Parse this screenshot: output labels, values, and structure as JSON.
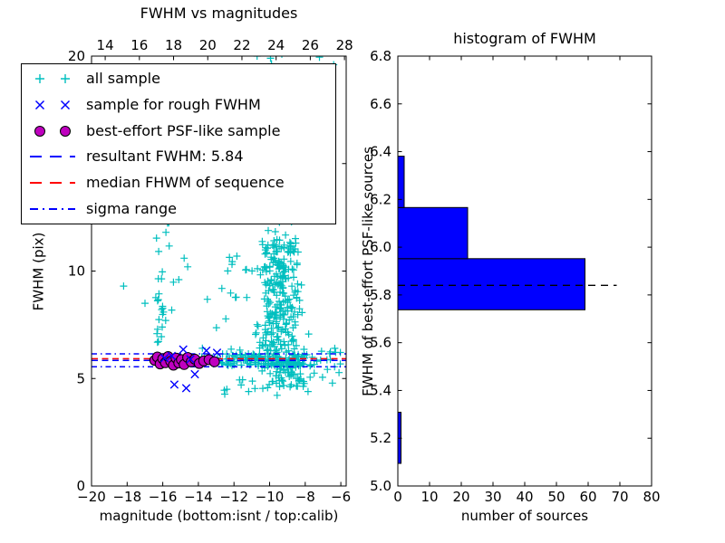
{
  "figure": {
    "background": "#ffffff"
  },
  "colors": {
    "all_sample": "#00bfbf",
    "rough_sample": "#0000ff",
    "psf_sample": "#bf00bf",
    "resultant_line": "#0000ff",
    "median_line": "#ff0000",
    "sigma_line": "#0000ff",
    "hist_bar": "#0000ff",
    "hist_dashed_line": "#000000",
    "axis": "#000000"
  },
  "chart_data": [
    {
      "type": "scatter",
      "title": "FWHM vs magnitudes",
      "xlabel": "magnitude (bottom:isnt / top:calib)",
      "ylabel": "FWHM (pix)",
      "xlim": [
        -20,
        -5.7
      ],
      "ylim": [
        0,
        20
      ],
      "top_axis_lim": [
        13.2,
        28.1
      ],
      "x_tick_values": [
        -20,
        -18,
        -16,
        -14,
        -12,
        -10,
        -8,
        -6
      ],
      "x_tick_labels": [
        "−20",
        "−18",
        "−16",
        "−14",
        "−12",
        "−10",
        "−8",
        "−6"
      ],
      "top_tick_values": [
        14,
        16,
        18,
        20,
        22,
        24,
        26,
        28
      ],
      "top_tick_labels": [
        "14",
        "16",
        "18",
        "20",
        "22",
        "24",
        "26",
        "28"
      ],
      "y_tick_values": [
        0,
        5,
        10,
        15,
        20
      ],
      "y_tick_labels": [
        "0",
        "5",
        "10",
        "15",
        "20"
      ],
      "grid": false,
      "legend_position": "upper left",
      "hlines": [
        {
          "name": "resultant FWHM",
          "value": 5.84,
          "color": "#0000ff",
          "style": "dashed"
        },
        {
          "name": "median FHWM of sequence",
          "value": 5.92,
          "color": "#ff0000",
          "style": "dashed"
        },
        {
          "name": "sigma range low",
          "value": 5.55,
          "color": "#0000ff",
          "style": "dashdot"
        },
        {
          "name": "sigma range high",
          "value": 6.15,
          "color": "#0000ff",
          "style": "dashdot"
        }
      ],
      "series": [
        {
          "name": "all sample",
          "marker": "plus",
          "color": "#00bfbf",
          "clusters": [
            {
              "n": 2,
              "x": [
                -9.9,
                -9.3
              ],
              "y": [
                19.6,
                20.3
              ]
            },
            {
              "n": 14,
              "x": [
                -16.45,
                -15.65
              ],
              "y": [
                6.3,
                9.0
              ]
            },
            {
              "n": 16,
              "x": [
                -16.45,
                -15.3
              ],
              "y": [
                8.0,
                12.6
              ]
            },
            {
              "n": 18,
              "x": [
                -13.8,
                -11.2
              ],
              "y": [
                6.3,
                10.8
              ]
            },
            {
              "n": 12,
              "x": [
                -10.6,
                -9.0
              ],
              "y": [
                16.2,
                19.4
              ],
              "gauss_x": true
            },
            {
              "n": 70,
              "x": [
                -11.0,
                -8.3
              ],
              "y": [
                11.5,
                16.2
              ],
              "gauss_x": true
            },
            {
              "n": 240,
              "x": [
                -11.3,
                -7.6
              ],
              "y": [
                6.3,
                11.5
              ],
              "gauss_x": true
            },
            {
              "n": 90,
              "x": [
                -10.8,
                -7.2
              ],
              "y": [
                4.6,
                6.3
              ],
              "gauss_x": true
            },
            {
              "n": 12,
              "x": [
                -12.6,
                -7.4
              ],
              "y": [
                4.2,
                5.0
              ]
            },
            {
              "n": 115,
              "x": [
                -12.7,
                -7.5
              ],
              "y": [
                5.55,
                6.15
              ]
            },
            {
              "n": 6,
              "x": [
                -14.3,
                -12.8
              ],
              "y": [
                5.6,
                6.1
              ]
            },
            {
              "n": 18,
              "x": [
                -7.5,
                -6.0
              ],
              "y": [
                4.7,
                6.5
              ]
            }
          ],
          "points": [
            [
              -18.2,
              9.3
            ],
            [
              -17.0,
              8.5
            ],
            [
              -15.1,
              9.6
            ],
            [
              -14.8,
              10.6
            ],
            [
              -14.6,
              10.2
            ],
            [
              -12.4,
              4.5
            ],
            [
              -11.6,
              4.7
            ],
            [
              -10.7,
              20.0
            ],
            [
              -9.95,
              19.9
            ],
            [
              -7.2,
              19.95
            ],
            [
              -6.4,
              19.6
            ]
          ]
        },
        {
          "name": "sample for rough FWHM",
          "marker": "cross",
          "color": "#0000ff",
          "points": [
            [
              -15.9,
              5.95
            ],
            [
              -15.5,
              6.05
            ],
            [
              -14.85,
              6.35
            ],
            [
              -14.45,
              5.9
            ],
            [
              -13.55,
              6.3
            ],
            [
              -12.95,
              6.2
            ],
            [
              -14.2,
              5.2
            ],
            [
              -15.35,
              4.72
            ],
            [
              -14.68,
              4.55
            ]
          ]
        },
        {
          "name": "best-effort PSF-like sample",
          "marker": "circle",
          "color": "#bf00bf",
          "points": [
            [
              -16.45,
              5.85
            ],
            [
              -16.3,
              6.0
            ],
            [
              -16.15,
              5.68
            ],
            [
              -16.0,
              5.92
            ],
            [
              -15.85,
              5.74
            ],
            [
              -15.7,
              6.02
            ],
            [
              -15.55,
              5.8
            ],
            [
              -15.4,
              5.62
            ],
            [
              -15.25,
              5.95
            ],
            [
              -15.1,
              5.72
            ],
            [
              -14.95,
              5.88
            ],
            [
              -14.8,
              5.65
            ],
            [
              -14.6,
              5.98
            ],
            [
              -14.4,
              5.78
            ],
            [
              -14.2,
              5.9
            ],
            [
              -13.95,
              5.7
            ],
            [
              -13.7,
              5.82
            ],
            [
              -13.4,
              5.88
            ],
            [
              -13.1,
              5.78
            ]
          ]
        }
      ],
      "legend": [
        {
          "label": "all sample",
          "marker": "plus",
          "style": "points",
          "color": "#00bfbf"
        },
        {
          "label": "sample for rough FWHM",
          "marker": "cross",
          "style": "points",
          "color": "#0000ff"
        },
        {
          "label": "best-effort PSF-like sample",
          "marker": "circle",
          "style": "points",
          "color": "#bf00bf"
        },
        {
          "label": "resultant FWHM: 5.84",
          "marker": "line",
          "style": "dashed",
          "color": "#0000ff"
        },
        {
          "label": "median FHWM of sequence",
          "marker": "line",
          "style": "dashed",
          "color": "#ff0000"
        },
        {
          "label": "sigma range",
          "marker": "line",
          "style": "dashdot",
          "color": "#0000ff"
        }
      ]
    },
    {
      "type": "bar",
      "orientation": "horizontal",
      "title": "histogram of FWHM",
      "xlabel": "number of sources",
      "ylabel": "FWHM of best-effort PSF-like sources",
      "xlim": [
        0,
        80
      ],
      "ylim": [
        5.0,
        6.8
      ],
      "x_tick_values": [
        0,
        10,
        20,
        30,
        40,
        50,
        60,
        70,
        80
      ],
      "x_tick_labels": [
        "0",
        "10",
        "20",
        "30",
        "40",
        "50",
        "60",
        "70",
        "80"
      ],
      "y_tick_values": [
        5.0,
        5.2,
        5.4,
        5.6,
        5.8,
        6.0,
        6.2,
        6.4,
        6.6,
        6.8
      ],
      "y_tick_labels": [
        "5.0",
        "5.2",
        "5.4",
        "5.6",
        "5.8",
        "6.0",
        "6.2",
        "6.4",
        "6.6",
        "6.8"
      ],
      "grid": false,
      "bar_color": "#0000ff",
      "bin_edges": [
        5.095,
        5.309,
        5.524,
        5.738,
        5.952,
        6.166,
        6.381
      ],
      "counts": [
        1,
        0,
        0,
        59,
        22,
        2
      ],
      "dashed_line": {
        "value": 5.84,
        "x_start": 0,
        "x_end": 69,
        "color": "#000000",
        "style": "dashed"
      }
    }
  ]
}
